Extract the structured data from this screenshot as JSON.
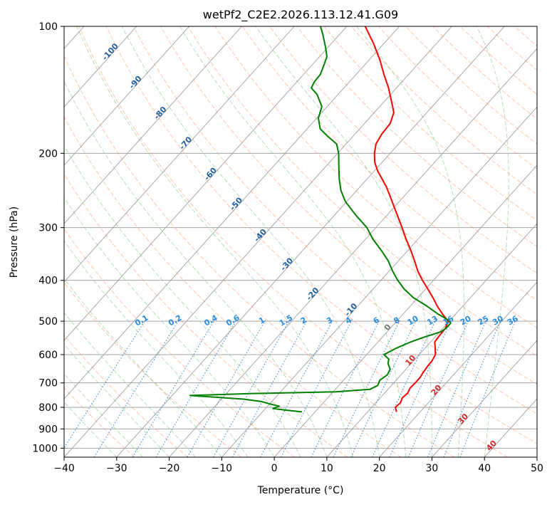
{
  "chart_data": {
    "type": "line",
    "subtype": "skew-t log-p diagram",
    "title": "wetPf2_C2E2.2026.113.12.41.G09",
    "xlabel": "Temperature (°C)",
    "ylabel": "Pressure (hPa)",
    "xlim": [
      -40,
      50
    ],
    "ylim": [
      1050,
      100
    ],
    "x_ticks": [
      -40,
      -30,
      -20,
      -10,
      0,
      10,
      20,
      30,
      40,
      50
    ],
    "x_tick_labels": [
      "−40",
      "−30",
      "−20",
      "−10",
      "0",
      "10",
      "20",
      "30",
      "40",
      "50"
    ],
    "y_ticks": [
      100,
      200,
      300,
      400,
      500,
      600,
      700,
      800,
      900,
      1000
    ],
    "y_tick_labels": [
      "100",
      "200",
      "300",
      "400",
      "500",
      "600",
      "700",
      "800",
      "900",
      "1000"
    ],
    "grid": true,
    "isotherm_labels": [
      {
        "text": "-100",
        "t": -100,
        "p": 116
      },
      {
        "text": "-90",
        "t": -90,
        "p": 137
      },
      {
        "text": "-80",
        "t": -80,
        "p": 162
      },
      {
        "text": "-70",
        "t": -70,
        "p": 191
      },
      {
        "text": "-60",
        "t": -60,
        "p": 226
      },
      {
        "text": "-50",
        "t": -50,
        "p": 266
      },
      {
        "text": "-40",
        "t": -40,
        "p": 316
      },
      {
        "text": "-30",
        "t": -30,
        "p": 370
      },
      {
        "text": "-20",
        "t": -20,
        "p": 435
      },
      {
        "text": "-10",
        "t": -10,
        "p": 474
      },
      {
        "text": "0",
        "t": 0,
        "p": 522
      },
      {
        "text": "10",
        "t": 10,
        "p": 625
      },
      {
        "text": "20",
        "t": 20,
        "p": 735
      },
      {
        "text": "30",
        "t": 30,
        "p": 860
      },
      {
        "text": "40",
        "t": 40,
        "p": 995
      }
    ],
    "mixing_ratio_labels": [
      "0.1",
      "0.2",
      "0.4",
      "0.6",
      "1",
      "1.5",
      "2",
      "3",
      "4",
      "6",
      "8",
      "10",
      "13",
      "16",
      "20",
      "25",
      "30",
      "36"
    ],
    "mixing_ratio_values": [
      0.1,
      0.2,
      0.4,
      0.6,
      1,
      1.5,
      2,
      3,
      4,
      6,
      8,
      10,
      13,
      16,
      20,
      25,
      30,
      36
    ],
    "series": [
      {
        "name": "Temperature",
        "color": "#ff0000",
        "points": [
          [
            820,
            15.5
          ],
          [
            800,
            14.5
          ],
          [
            780,
            14.7
          ],
          [
            760,
            14.2
          ],
          [
            740,
            14.4
          ],
          [
            720,
            14.0
          ],
          [
            700,
            14.1
          ],
          [
            680,
            14.1
          ],
          [
            660,
            13.8
          ],
          [
            640,
            13.6
          ],
          [
            620,
            13.5
          ],
          [
            600,
            13.1
          ],
          [
            580,
            12.0
          ],
          [
            560,
            10.8
          ],
          [
            540,
            10.6
          ],
          [
            520,
            10.5
          ],
          [
            500,
            9.8
          ],
          [
            480,
            7.4
          ],
          [
            460,
            5.1
          ],
          [
            440,
            2.9
          ],
          [
            420,
            0.5
          ],
          [
            400,
            -2.1
          ],
          [
            380,
            -4.6
          ],
          [
            360,
            -6.9
          ],
          [
            340,
            -9.4
          ],
          [
            320,
            -12.2
          ],
          [
            300,
            -15.0
          ],
          [
            280,
            -18.1
          ],
          [
            260,
            -21.4
          ],
          [
            240,
            -25.0
          ],
          [
            220,
            -29.4
          ],
          [
            210,
            -31.4
          ],
          [
            200,
            -33.0
          ],
          [
            190,
            -34.3
          ],
          [
            180,
            -34.9
          ],
          [
            170,
            -35.1
          ],
          [
            160,
            -36.3
          ],
          [
            150,
            -38.8
          ],
          [
            140,
            -41.5
          ],
          [
            130,
            -44.7
          ],
          [
            120,
            -48.0
          ],
          [
            110,
            -51.9
          ],
          [
            100,
            -56.5
          ]
        ]
      },
      {
        "name": "Dewpoint",
        "color": "#008000",
        "points": [
          [
            820,
            -2.5
          ],
          [
            812,
            -6.0
          ],
          [
            805,
            -8.6
          ],
          [
            795,
            -7.8
          ],
          [
            785,
            -10.0
          ],
          [
            775,
            -12.0
          ],
          [
            765,
            -15.8
          ],
          [
            750,
            -26.6
          ],
          [
            742,
            -15.0
          ],
          [
            735,
            0.5
          ],
          [
            725,
            6.6
          ],
          [
            710,
            7.4
          ],
          [
            690,
            6.9
          ],
          [
            670,
            7.4
          ],
          [
            650,
            7.0
          ],
          [
            630,
            5.6
          ],
          [
            615,
            5.0
          ],
          [
            600,
            3.3
          ],
          [
            580,
            4.5
          ],
          [
            560,
            6.2
          ],
          [
            545,
            8.0
          ],
          [
            530,
            10.2
          ],
          [
            520,
            10.6
          ],
          [
            505,
            10.6
          ],
          [
            495,
            9.3
          ],
          [
            480,
            6.5
          ],
          [
            460,
            3.1
          ],
          [
            440,
            -0.8
          ],
          [
            420,
            -4.0
          ],
          [
            400,
            -6.8
          ],
          [
            380,
            -9.4
          ],
          [
            360,
            -11.9
          ],
          [
            340,
            -15.0
          ],
          [
            320,
            -18.5
          ],
          [
            300,
            -21.7
          ],
          [
            280,
            -26.0
          ],
          [
            260,
            -30.3
          ],
          [
            245,
            -33.0
          ],
          [
            230,
            -35.3
          ],
          [
            215,
            -37.5
          ],
          [
            200,
            -39.8
          ],
          [
            190,
            -41.8
          ],
          [
            182,
            -44.9
          ],
          [
            175,
            -47.5
          ],
          [
            165,
            -49.7
          ],
          [
            155,
            -51.0
          ],
          [
            145,
            -54.0
          ],
          [
            140,
            -56.2
          ],
          [
            135,
            -56.7
          ],
          [
            130,
            -56.8
          ],
          [
            125,
            -57.5
          ],
          [
            118,
            -58.6
          ],
          [
            112,
            -60.5
          ],
          [
            105,
            -63.0
          ],
          [
            100,
            -65.0
          ]
        ]
      }
    ]
  }
}
